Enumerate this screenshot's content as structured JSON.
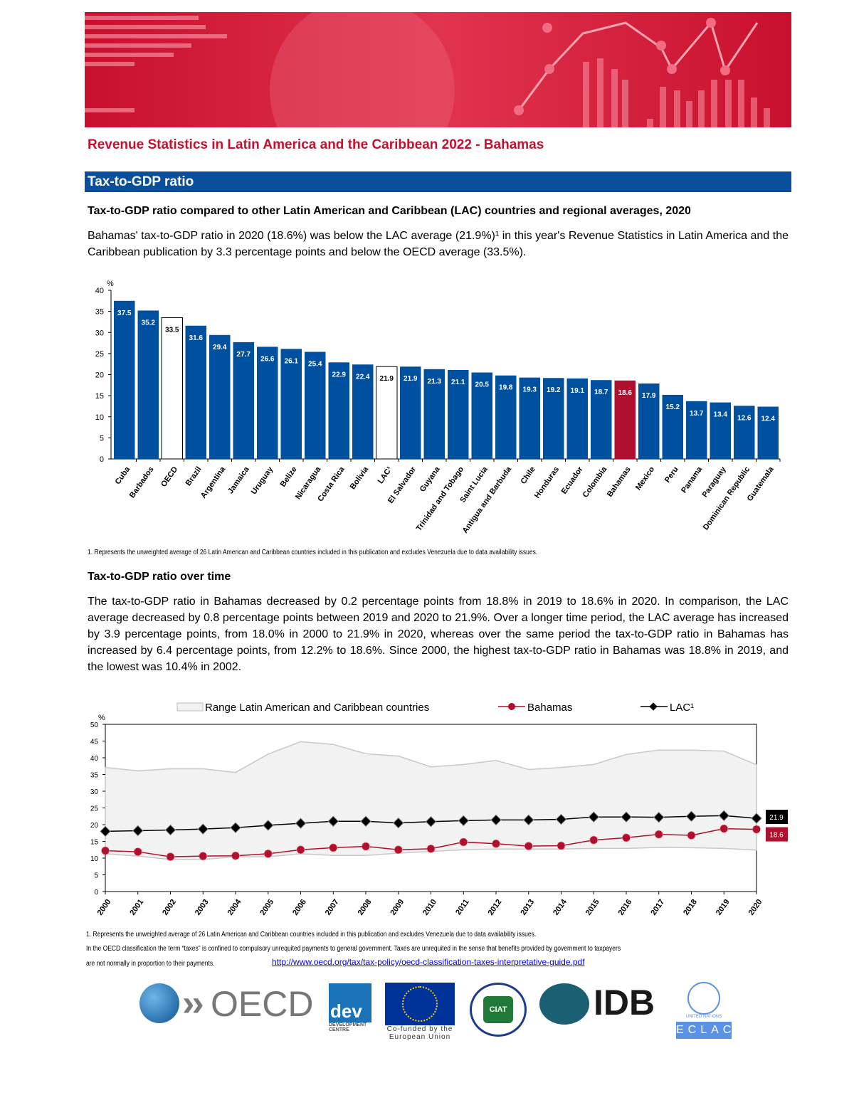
{
  "document": {
    "title": "Revenue Statistics in Latin America and the Caribbean 2022 - Bahamas",
    "section": "Tax-to-GDP ratio",
    "subsection1": "Tax-to-GDP ratio compared to other Latin American and Caribbean (LAC) countries and regional averages, 2020",
    "paragraph1": "Bahamas' tax-to-GDP ratio in 2020 (18.6%) was below the LAC average (21.9%)¹ in this year's Revenue Statistics in Latin America and the Caribbean publication by 3.3 percentage points and below the OECD average (33.5%).",
    "footnote1": "1. Represents the unweighted average of 26 Latin American and Caribbean countries included in this publication and excludes Venezuela due to data availability issues.",
    "subsection2": "Tax-to-GDP ratio over time",
    "paragraph2": "The tax-to-GDP ratio in Bahamas decreased by 0.2 percentage points from 18.8% in 2019 to 18.6% in 2020. In comparison, the LAC average decreased by 0.8 percentage points between 2019 and 2020 to 21.9%. Over a longer time period, the LAC average has increased by 3.9 percentage points, from 18.0% in 2000 to 21.9% in 2020, whereas over the same period the tax-to-GDP ratio in Bahamas has increased by 6.4 percentage points, from 12.2% to 18.6%. Since 2000, the highest tax-to-GDP ratio in Bahamas was 18.8% in 2019, and the lowest was 10.4% in 2002.",
    "footnote2": "1. Represents the unweighted average of 26 Latin American and Caribbean countries included in this publication and excludes Venezuela due to data availability issues.",
    "note_line1": "In the OECD classification the term “taxes” is confined to compulsory unrequited payments to general government. Taxes are unrequited in the sense that benefits provided by government to taxpayers",
    "note_line2": "are not normally in proportion to their payments.",
    "link": "http://www.oecd.org/tax/tax-policy/oecd-classification-taxes-interpretative-guide.pdf"
  },
  "logos": {
    "oecd": "OECD",
    "dev": "dev",
    "dev_sub": "DEVELOPMENT CENTRE",
    "eu": "Co-funded by the European Union",
    "ciat": "CIAT",
    "idb": "IDB",
    "un": "UNITED NATIONS",
    "eclac": "ECLAC"
  },
  "colors": {
    "blue": "#0a4f9e",
    "bar_blue": "#0050a0",
    "highlight": "#b0102d",
    "title_red": "#c8102e",
    "lac_line": "#000000",
    "range_fill": "#f2f2f2"
  },
  "chart_data": [
    {
      "type": "bar",
      "ylabel": "%",
      "ylim": [
        0,
        40
      ],
      "yticks": [
        0,
        5,
        10,
        15,
        20,
        25,
        30,
        35,
        40
      ],
      "categories": [
        "Cuba",
        "Barbados",
        "OECD",
        "Brazil",
        "Argentina",
        "Jamaica",
        "Uruguay",
        "Belize",
        "Nicaragua",
        "Costa Rica",
        "Bolivia",
        "LAC¹",
        "El Salvador",
        "Guyana",
        "Trinidad and Tobago",
        "Saint Lucia",
        "Antigua and Barbuda",
        "Chile",
        "Honduras",
        "Ecuador",
        "Colombia",
        "Bahamas",
        "Mexico",
        "Peru",
        "Panama",
        "Paraguay",
        "Dominican Republic",
        "Guatemala"
      ],
      "values": [
        37.5,
        35.2,
        33.5,
        31.6,
        29.4,
        27.7,
        26.6,
        26.1,
        25.4,
        22.9,
        22.4,
        21.9,
        21.9,
        21.3,
        21.1,
        20.5,
        19.8,
        19.3,
        19.2,
        19.1,
        18.7,
        18.6,
        17.9,
        15.2,
        13.7,
        13.4,
        12.6,
        12.4
      ],
      "highlight": "Bahamas",
      "white_bars": [
        "OECD",
        "LAC¹"
      ]
    },
    {
      "type": "line",
      "ylabel": "%",
      "ylim": [
        0,
        50
      ],
      "yticks": [
        0,
        5,
        10,
        15,
        20,
        25,
        30,
        35,
        40,
        45,
        50
      ],
      "x": [
        2000,
        2001,
        2002,
        2003,
        2004,
        2005,
        2006,
        2007,
        2008,
        2009,
        2010,
        2011,
        2012,
        2013,
        2014,
        2015,
        2016,
        2017,
        2018,
        2019,
        2020
      ],
      "legend": "top",
      "range": {
        "name": "Range Latin American and Caribbean countries",
        "upper": [
          37.1,
          36.1,
          36.7,
          36.7,
          35.6,
          41.1,
          44.8,
          44.0,
          41.2,
          40.5,
          37.3,
          38.0,
          39.2,
          36.5,
          37.1,
          38.0,
          41.0,
          42.3,
          42.3,
          42.0,
          37.9
        ],
        "lower": [
          11.3,
          10.6,
          9.6,
          9.6,
          10.4,
          10.4,
          11.3,
          10.8,
          10.8,
          11.5,
          12.0,
          12.5,
          12.7,
          12.7,
          12.7,
          12.9,
          12.9,
          13.2,
          13.1,
          12.9,
          12.4
        ]
      },
      "series": [
        {
          "name": "Bahamas",
          "values": [
            12.2,
            11.9,
            10.4,
            10.6,
            10.7,
            11.3,
            12.5,
            13.1,
            13.5,
            12.5,
            12.8,
            14.8,
            14.3,
            13.6,
            13.7,
            15.4,
            16.1,
            17.1,
            16.8,
            18.8,
            18.6
          ],
          "end_label": "18.6"
        },
        {
          "name": "LAC¹",
          "values": [
            18.0,
            18.2,
            18.4,
            18.7,
            19.1,
            19.8,
            20.4,
            21.0,
            21.0,
            20.5,
            20.9,
            21.2,
            21.4,
            21.4,
            21.6,
            22.3,
            22.3,
            22.2,
            22.5,
            22.7,
            21.9
          ],
          "end_label": "21.9"
        }
      ]
    }
  ]
}
